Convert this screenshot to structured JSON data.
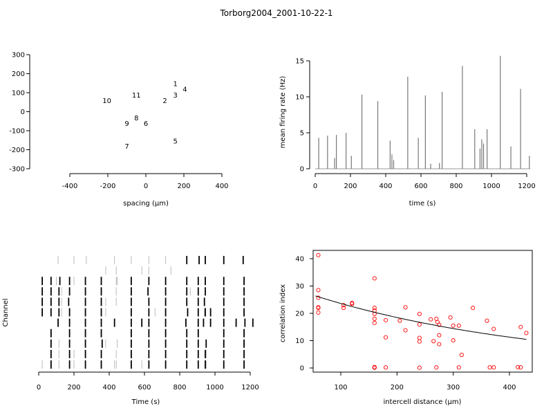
{
  "title": "Torborg2004_2001-10-22-1",
  "chart_data": [
    {
      "type": "scatter",
      "panel": "electrode-layout",
      "xlabel": "spacing (µm)",
      "ylabel": "",
      "xlim": [
        -400,
        400
      ],
      "ylim": [
        -300,
        300
      ],
      "xticks": [
        "-400",
        "-200",
        "0",
        "200",
        "400"
      ],
      "yticks": [
        "-300",
        "-200",
        "-100",
        "0",
        "100",
        "200",
        "300"
      ],
      "points": [
        {
          "label": "1",
          "x": 155,
          "y": 148
        },
        {
          "label": "2",
          "x": 100,
          "y": 58
        },
        {
          "label": "3",
          "x": 155,
          "y": 88
        },
        {
          "label": "4",
          "x": 205,
          "y": 118
        },
        {
          "label": "5",
          "x": 155,
          "y": -155
        },
        {
          "label": "6",
          "x": 0,
          "y": -62
        },
        {
          "label": "7",
          "x": -100,
          "y": -182
        },
        {
          "label": "8",
          "x": -50,
          "y": -32
        },
        {
          "label": "9",
          "x": -100,
          "y": -62
        },
        {
          "label": "10",
          "x": -205,
          "y": 58
        },
        {
          "label": "11",
          "x": -50,
          "y": 88
        }
      ]
    },
    {
      "type": "bar",
      "panel": "firing-rate",
      "xlabel": "time (s)",
      "ylabel": "mean firing rate (Hz)",
      "xlim": [
        0,
        1220
      ],
      "ylim": [
        0,
        16
      ],
      "xticks": [
        "0",
        "200",
        "400",
        "600",
        "800",
        "1000",
        "1200"
      ],
      "yticks": [
        "0",
        "5",
        "10",
        "15"
      ],
      "color": "#777777",
      "x": [
        20,
        70,
        110,
        120,
        175,
        205,
        265,
        355,
        425,
        435,
        445,
        525,
        585,
        625,
        655,
        705,
        720,
        835,
        905,
        935,
        945,
        955,
        975,
        1050,
        1110,
        1165,
        1215
      ],
      "values": [
        4.3,
        4.6,
        1.5,
        4.7,
        5.0,
        1.8,
        10.3,
        9.4,
        3.9,
        2.0,
        1.2,
        12.8,
        4.3,
        10.2,
        0.7,
        0.8,
        10.7,
        14.3,
        5.5,
        2.8,
        4.1,
        3.5,
        5.5,
        15.7,
        3.1,
        11.1,
        1.8
      ]
    },
    {
      "type": "raster",
      "panel": "spike-raster",
      "xlabel": "Time (s)",
      "ylabel": "Channel",
      "xlim": [
        0,
        1220
      ],
      "xticks": [
        "0",
        "200",
        "400",
        "600",
        "800",
        "1000",
        "1200"
      ],
      "n_channels": 11,
      "spikes_bold": [
        [
          840,
          910,
          945,
          1050,
          1160
        ],
        [],
        [
          20,
          70,
          120,
          175,
          265,
          355,
          525,
          625,
          720,
          840,
          905,
          945,
          1050,
          1165
        ],
        [
          20,
          70,
          115,
          175,
          265,
          355,
          525,
          620,
          720,
          840,
          905,
          945,
          1050,
          1165
        ],
        [
          20,
          70,
          115,
          170,
          265,
          355,
          525,
          625,
          720,
          840,
          905,
          940,
          1050,
          1165
        ],
        [
          20,
          70,
          115,
          175,
          265,
          355,
          525,
          625,
          720,
          845,
          905,
          945,
          975,
          1050,
          1165
        ],
        [
          110,
          175,
          265,
          355,
          430,
          525,
          585,
          625,
          720,
          835,
          905,
          935,
          975,
          1050,
          1120,
          1170,
          1215
        ],
        [
          70,
          175,
          265,
          355,
          525,
          625,
          720,
          840,
          905,
          1050,
          1165
        ],
        [
          70,
          175,
          265,
          360,
          525,
          625,
          720,
          840,
          905,
          950,
          1050,
          1165
        ],
        [
          70,
          175,
          265,
          355,
          525,
          625,
          720,
          840,
          905,
          945,
          1050,
          1165
        ],
        [
          70,
          175,
          265,
          355,
          525,
          625,
          720,
          840,
          905,
          945,
          1050,
          1165
        ]
      ],
      "spikes_light": [
        [
          110,
          200,
          270,
          430,
          525,
          625,
          720
        ],
        [
          380,
          440,
          585,
          625,
          750
        ],
        [
          100,
          200,
          440,
          445
        ],
        [
          130,
          440,
          860
        ],
        [
          130,
          380,
          440,
          940
        ],
        [
          130,
          380,
          660,
          940
        ],
        [],
        [],
        [
          115,
          380,
          445,
          950
        ],
        [
          115,
          200,
          440,
          950
        ],
        [
          20,
          115,
          200,
          430,
          440,
          585,
          950
        ]
      ]
    },
    {
      "type": "scatter",
      "panel": "correlation",
      "xlabel": "intercell distance (µm)",
      "ylabel": "correlation index",
      "xlim": [
        55,
        435
      ],
      "ylim": [
        0,
        43
      ],
      "xticks": [
        "100",
        "200",
        "300",
        "400"
      ],
      "yticks": [
        "0",
        "10",
        "20",
        "30",
        "40"
      ],
      "color": "#ff0000",
      "x": [
        60,
        60,
        60,
        60,
        60,
        60,
        105,
        105,
        120,
        120,
        160,
        160,
        160,
        160,
        160,
        160,
        160,
        160,
        160,
        180,
        180,
        180,
        205,
        215,
        215,
        240,
        240,
        240,
        240,
        240,
        260,
        265,
        270,
        270,
        272,
        275,
        275,
        275,
        295,
        300,
        300,
        310,
        310,
        315,
        335,
        360,
        365,
        372,
        372,
        415,
        420,
        420,
        430
      ],
      "y": [
        41.3,
        28.5,
        25.7,
        22.2,
        22.0,
        20.3,
        23.0,
        22.0,
        23.8,
        23.5,
        32.8,
        22.0,
        21.0,
        19.8,
        18.0,
        16.5,
        0.3,
        0.2,
        0.1,
        17.5,
        11.2,
        0.2,
        17.3,
        22.2,
        13.8,
        19.8,
        15.9,
        11.0,
        9.7,
        0.1,
        17.8,
        9.8,
        0.2,
        18.0,
        16.8,
        15.8,
        12.0,
        8.7,
        18.5,
        15.5,
        10.1,
        15.5,
        0.2,
        4.8,
        22.0,
        17.3,
        0.2,
        14.3,
        0.2,
        0.3,
        15.0,
        0.2,
        12.8
      ],
      "fit": {
        "a": 30.2,
        "b": -0.00246
      }
    }
  ]
}
